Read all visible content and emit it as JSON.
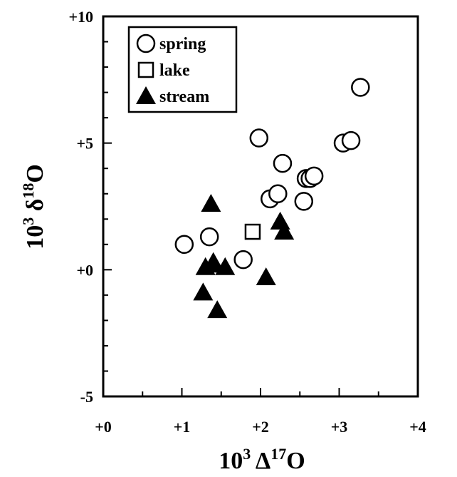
{
  "chart_data": {
    "type": "scatter",
    "xlabel": {
      "base": "10",
      "exp1": "3",
      "symbol": " Δ",
      "exp2": "17",
      "tail": "O"
    },
    "ylabel": {
      "base": "10",
      "exp1": "3",
      "symbol": " δ",
      "exp2": "18",
      "tail": "O"
    },
    "xlim": [
      0,
      4
    ],
    "ylim": [
      -5,
      10
    ],
    "xticks": [
      {
        "value": 0,
        "label": "+0"
      },
      {
        "value": 1,
        "label": "+1"
      },
      {
        "value": 2,
        "label": "+2"
      },
      {
        "value": 3,
        "label": "+3"
      },
      {
        "value": 4,
        "label": "+4"
      }
    ],
    "yticks": [
      {
        "value": -5,
        "label": "-5"
      },
      {
        "value": 0,
        "label": "+0"
      },
      {
        "value": 5,
        "label": "+5"
      },
      {
        "value": 10,
        "label": "+10"
      }
    ],
    "grid": false,
    "legend_position": "top-left",
    "series": [
      {
        "name": "spring",
        "marker": "circle",
        "x": [
          1.03,
          1.35,
          1.78,
          1.98,
          2.12,
          2.22,
          2.28,
          2.55,
          2.58,
          2.63,
          2.68,
          3.05,
          3.15,
          3.27
        ],
        "y": [
          1.0,
          1.3,
          0.4,
          5.2,
          2.8,
          3.0,
          4.2,
          2.7,
          3.6,
          3.6,
          3.7,
          5.0,
          5.1,
          7.2
        ]
      },
      {
        "name": "lake",
        "marker": "square",
        "x": [
          1.9
        ],
        "y": [
          1.5
        ]
      },
      {
        "name": "stream",
        "marker": "triangle",
        "x": [
          1.27,
          1.3,
          1.37,
          1.4,
          1.4,
          1.45,
          1.55,
          2.07,
          2.25,
          2.3
        ],
        "y": [
          -0.9,
          0.1,
          2.6,
          0.2,
          0.3,
          -1.6,
          0.1,
          -0.3,
          1.9,
          1.5
        ]
      }
    ]
  }
}
